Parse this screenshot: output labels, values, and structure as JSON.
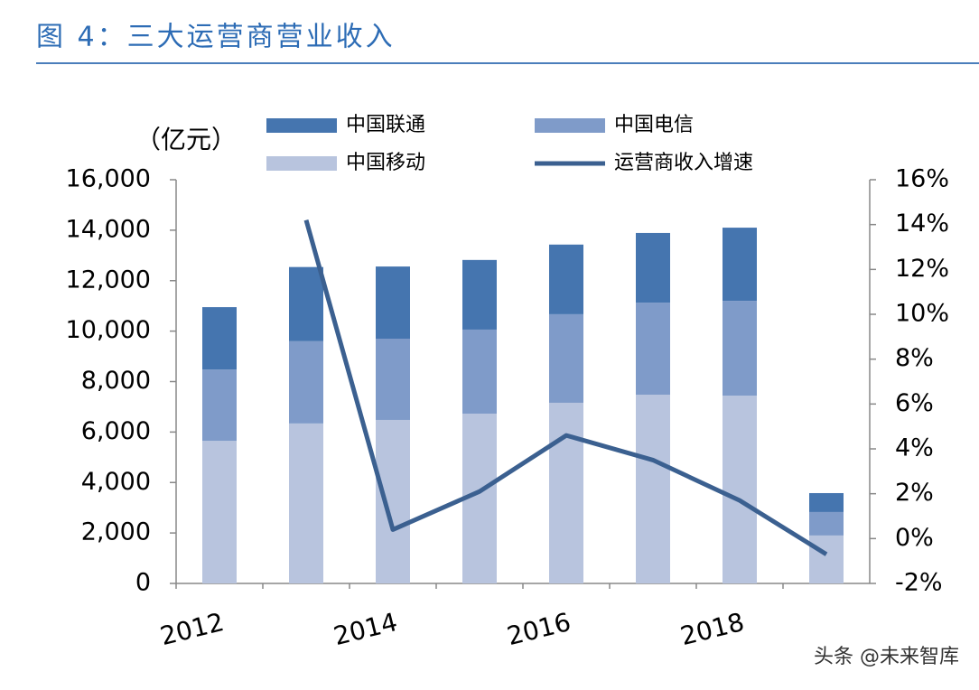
{
  "chart_data": {
    "type": "bar",
    "title": "图 4：三大运营商营业收入",
    "y_label": "（亿元）",
    "watermark": "头条 @未来智库",
    "categories": [
      "2012",
      null,
      "2014",
      null,
      "2016",
      null,
      "2018",
      null
    ],
    "stacked": true,
    "series": [
      {
        "name": "中国移动",
        "color": "#b8c4de",
        "values": [
          5650,
          6340,
          6480,
          6730,
          7160,
          7480,
          7440,
          1900
        ]
      },
      {
        "name": "中国电信",
        "color": "#7f9bc9",
        "values": [
          2830,
          3260,
          3220,
          3330,
          3510,
          3650,
          3760,
          930
        ]
      },
      {
        "name": "中国联通",
        "color": "#4575af",
        "values": [
          2470,
          2940,
          2860,
          2760,
          2760,
          2760,
          2900,
          750
        ]
      },
      {
        "name": "运营商收入增速",
        "color": "#3b6090",
        "type": "line",
        "axis": "y2",
        "values": [
          null,
          14.2,
          0.4,
          2.1,
          4.6,
          3.5,
          1.7,
          -0.7
        ]
      }
    ],
    "ylim": [
      0,
      16000
    ],
    "yticks": [
      0,
      {
        "value": 2000,
        "label": "2,000"
      },
      {
        "value": 4000,
        "label": "4,000"
      },
      {
        "value": 6000,
        "label": "6,000"
      },
      {
        "value": 8000,
        "label": "8,000"
      },
      {
        "value": 10000,
        "label": "10,000"
      },
      {
        "value": 12000,
        "label": "12,000"
      },
      {
        "value": 14000,
        "label": "14,000"
      },
      {
        "value": 16000,
        "label": "16,000"
      }
    ],
    "y2lim": [
      -2,
      16
    ],
    "y2ticks": [
      {
        "value": -2,
        "label": "-2%"
      },
      {
        "value": 0,
        "label": "0%"
      },
      {
        "value": 2,
        "label": "2%"
      },
      {
        "value": 4,
        "label": "4%"
      },
      {
        "value": 6,
        "label": "6%"
      },
      {
        "value": 8,
        "label": "8%"
      },
      {
        "value": 10,
        "label": "10%"
      },
      {
        "value": 12,
        "label": "12%"
      },
      {
        "value": 14,
        "label": "14%"
      },
      {
        "value": 16,
        "label": "16%"
      }
    ],
    "grid": false
  }
}
